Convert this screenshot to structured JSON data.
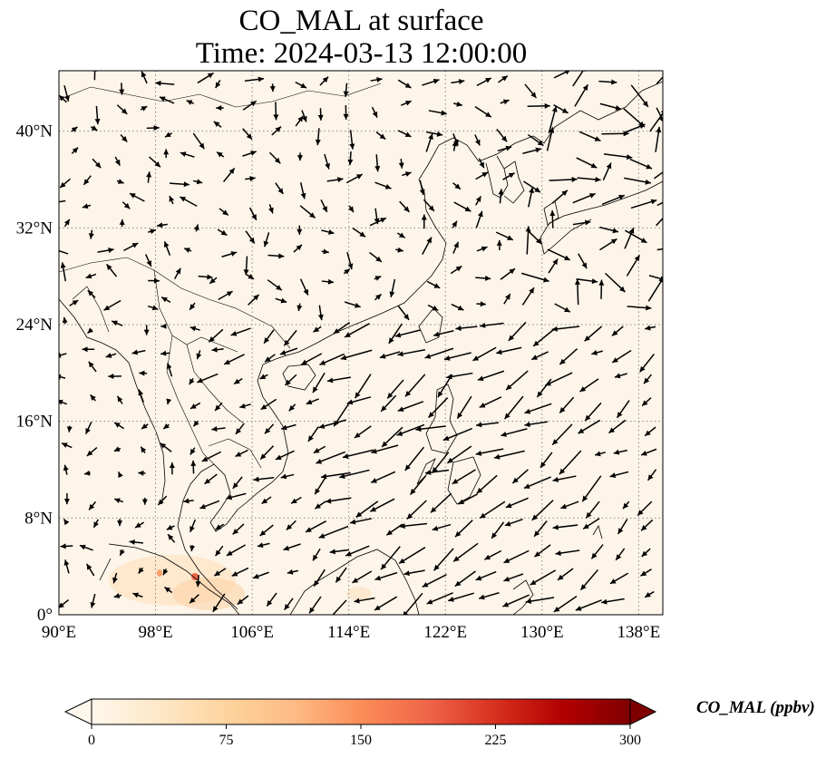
{
  "title": {
    "line1": "CO_MAL at surface",
    "line2": "Time: 2024-03-13 12:00:00"
  },
  "map": {
    "projection": "PlateCarree",
    "extent_lon": [
      90,
      140
    ],
    "extent_lat": [
      0,
      45
    ],
    "lon_ticks": [
      "90°E",
      "98°E",
      "106°E",
      "114°E",
      "122°E",
      "130°E",
      "138°E"
    ],
    "lat_ticks": [
      "0°",
      "8°N",
      "16°N",
      "24°N",
      "32°N",
      "40°N"
    ],
    "gridlines": "dotted gray",
    "background_color": "#fdf5e9",
    "coastlines": true,
    "borders": true,
    "wind_vectors": true
  },
  "colorbar": {
    "label": "CO_MAL (ppbv)",
    "ticks": [
      "0",
      "75",
      "150",
      "225",
      "300"
    ],
    "range": [
      0,
      300
    ],
    "colormap": "OrRd",
    "extend": "both"
  }
}
